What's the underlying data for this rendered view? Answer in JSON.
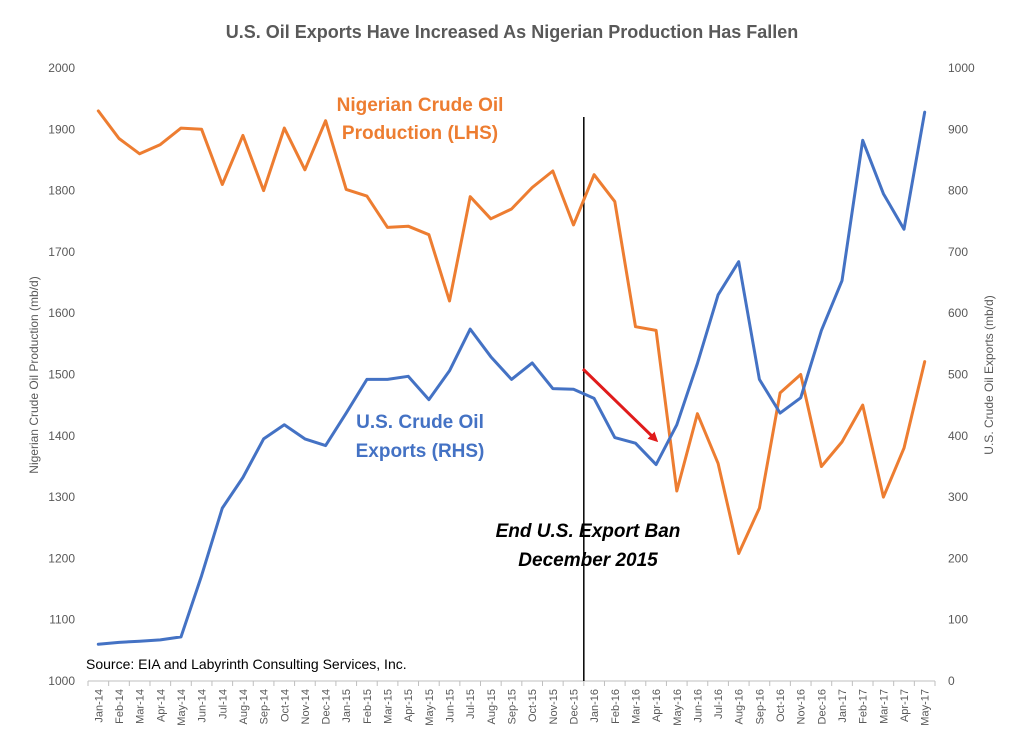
{
  "chart_data": {
    "type": "line",
    "title": "U.S. Oil Exports Have Increased As Nigerian Production Has Fallen",
    "ylabel_left": "Nigerian Crude Oil Production (mb/d)",
    "ylabel_right": "U.S. Crude Oil Exports (mb/d)",
    "ylim_left": [
      1000,
      2000
    ],
    "ylim_right": [
      0,
      1000
    ],
    "yticks_left": [
      "1000",
      "1100",
      "1200",
      "1300",
      "1400",
      "1500",
      "1600",
      "1700",
      "1800",
      "1900",
      "2000"
    ],
    "yticks_right": [
      "0",
      "100",
      "200",
      "300",
      "400",
      "500",
      "600",
      "700",
      "800",
      "900",
      "1000"
    ],
    "grid": false,
    "categories": [
      "Jan-14",
      "Feb-14",
      "Mar-14",
      "Apr-14",
      "May-14",
      "Jun-14",
      "Jul-14",
      "Aug-14",
      "Sep-14",
      "Oct-14",
      "Nov-14",
      "Dec-14",
      "Jan-15",
      "Feb-15",
      "Mar-15",
      "Apr-15",
      "May-15",
      "Jun-15",
      "Jul-15",
      "Aug-15",
      "Sep-15",
      "Oct-15",
      "Nov-15",
      "Dec-15",
      "Jan-16",
      "Feb-16",
      "Mar-16",
      "Apr-16",
      "May-16",
      "Jun-16",
      "Jul-16",
      "Aug-16",
      "Sep-16",
      "Oct-16",
      "Nov-16",
      "Dec-16",
      "Jan-17",
      "Feb-17",
      "Mar-17",
      "Apr-17",
      "May-17"
    ],
    "series": [
      {
        "name": "Nigerian Crude Oil Production (LHS)",
        "axis": "left",
        "color": "#ED7D31",
        "values": [
          1930,
          1885,
          1860,
          1875,
          1902,
          1900,
          1810,
          1890,
          1800,
          1902,
          1834,
          1914,
          1802,
          1791,
          1740,
          1742,
          1728,
          1620,
          1790,
          1754,
          1770,
          1805,
          1832,
          1744,
          1826,
          1782,
          1578,
          1572,
          1310,
          1436,
          1355,
          1208,
          1282,
          1470,
          1500,
          1350,
          1390,
          1450,
          1300,
          1380,
          1521
        ]
      },
      {
        "name": "U.S. Crude Oil Exports (RHS)",
        "axis": "right",
        "color": "#4472C4",
        "values": [
          60,
          63,
          65,
          67,
          72,
          172,
          282,
          332,
          395,
          418,
          395,
          384,
          437,
          492,
          492,
          497,
          459,
          506,
          574,
          529,
          492,
          519,
          477,
          476,
          461,
          397,
          388,
          353,
          418,
          518,
          630,
          684,
          492,
          437,
          462,
          572,
          653,
          882,
          795,
          737,
          928
        ]
      }
    ],
    "annotations": {
      "orange_label_line1": "Nigerian Crude Oil",
      "orange_label_line2": "Production (LHS)",
      "blue_label_line1": "U.S. Crude Oil",
      "blue_label_line2": "Exports (RHS)",
      "event_line1": "End U.S. Export Ban",
      "event_line2": "December 2015",
      "event_category": "Dec-15",
      "source": "Source: EIA and Labyrinth Consulting Services, Inc.",
      "arrow_color": "#E01B1B"
    }
  }
}
